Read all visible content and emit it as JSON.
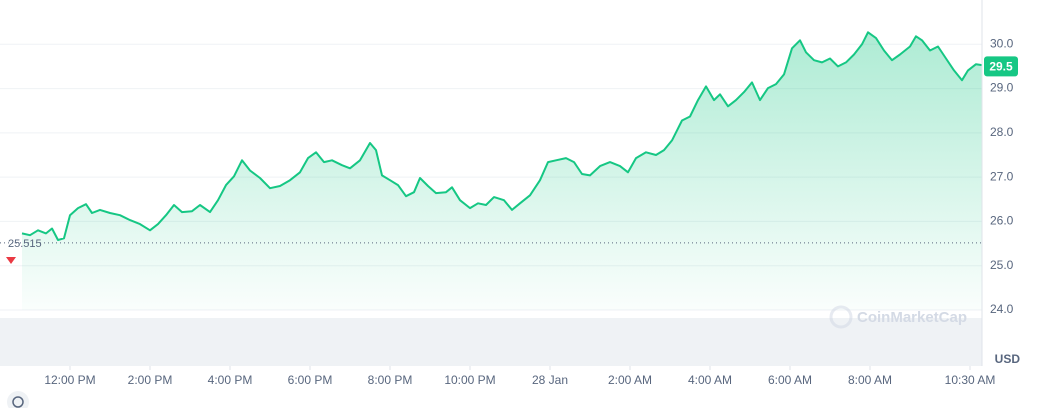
{
  "chart_data": {
    "type": "line",
    "color": "#16c784",
    "x": [
      10.8,
      11.0,
      11.2,
      11.4,
      11.55,
      11.7,
      11.85,
      12.0,
      12.2,
      12.4,
      12.55,
      12.75,
      13.0,
      13.25,
      13.5,
      13.75,
      14.0,
      14.2,
      14.4,
      14.6,
      14.8,
      15.05,
      15.25,
      15.5,
      15.7,
      15.9,
      16.1,
      16.3,
      16.5,
      16.75,
      17.0,
      17.25,
      17.5,
      17.75,
      17.95,
      18.15,
      18.35,
      18.55,
      18.8,
      19.0,
      19.25,
      19.5,
      19.65,
      19.8,
      20.0,
      20.2,
      20.4,
      20.6,
      20.75,
      20.95,
      21.15,
      21.4,
      21.55,
      21.75,
      22.0,
      22.2,
      22.4,
      22.6,
      22.85,
      23.05,
      23.25,
      23.5,
      23.75,
      23.95,
      24.15,
      24.4,
      24.6,
      24.8,
      25.0,
      25.25,
      25.5,
      25.75,
      25.95,
      26.15,
      26.4,
      26.65,
      26.85,
      27.05,
      27.3,
      27.5,
      27.7,
      27.9,
      28.1,
      28.25,
      28.45,
      28.65,
      28.85,
      29.05,
      29.25,
      29.45,
      29.65,
      29.85,
      30.05,
      30.25,
      30.4,
      30.6,
      30.8,
      31.0,
      31.2,
      31.4,
      31.6,
      31.8,
      31.95,
      32.15,
      32.35,
      32.55,
      32.75,
      33.0,
      33.15,
      33.3,
      33.5,
      33.7,
      33.9,
      34.1,
      34.3,
      34.45,
      34.65,
      34.8
    ],
    "values": [
      25.73,
      25.69,
      25.8,
      25.73,
      25.84,
      25.58,
      25.62,
      26.14,
      26.3,
      26.39,
      26.19,
      26.26,
      26.19,
      26.14,
      26.03,
      25.94,
      25.8,
      25.94,
      26.14,
      26.37,
      26.21,
      26.23,
      26.37,
      26.21,
      26.48,
      26.82,
      27.02,
      27.38,
      27.15,
      26.98,
      26.75,
      26.8,
      26.93,
      27.11,
      27.43,
      27.56,
      27.34,
      27.38,
      27.27,
      27.2,
      27.38,
      27.77,
      27.61,
      27.04,
      26.93,
      26.82,
      26.57,
      26.66,
      26.98,
      26.8,
      26.64,
      26.66,
      26.77,
      26.48,
      26.3,
      26.41,
      26.37,
      26.55,
      26.48,
      26.26,
      26.41,
      26.59,
      26.93,
      27.34,
      27.38,
      27.43,
      27.34,
      27.07,
      27.04,
      27.25,
      27.34,
      27.25,
      27.11,
      27.43,
      27.56,
      27.5,
      27.61,
      27.83,
      28.28,
      28.37,
      28.74,
      29.05,
      28.74,
      28.87,
      28.6,
      28.74,
      28.92,
      29.14,
      28.74,
      29.01,
      29.1,
      29.32,
      29.91,
      30.09,
      29.82,
      29.64,
      29.59,
      29.68,
      29.5,
      29.59,
      29.77,
      30.0,
      30.27,
      30.14,
      29.86,
      29.64,
      29.77,
      29.95,
      30.18,
      30.09,
      29.86,
      29.95,
      29.68,
      29.41,
      29.19,
      29.41,
      29.55,
      29.53
    ],
    "xlim": [
      10.25,
      34.8
    ],
    "xticks": [
      {
        "value": 12,
        "label": "12:00 PM"
      },
      {
        "value": 14,
        "label": "2:00 PM"
      },
      {
        "value": 16,
        "label": "4:00 PM"
      },
      {
        "value": 18,
        "label": "6:00 PM"
      },
      {
        "value": 20,
        "label": "8:00 PM"
      },
      {
        "value": 22,
        "label": "10:00 PM"
      },
      {
        "value": 24,
        "label": "28 Jan"
      },
      {
        "value": 26,
        "label": "2:00 AM"
      },
      {
        "value": 28,
        "label": "4:00 AM"
      },
      {
        "value": 30,
        "label": "6:00 AM"
      },
      {
        "value": 32,
        "label": "8:00 AM"
      },
      {
        "value": 34.5,
        "label": "10:30 AM"
      }
    ],
    "ylim": [
      24,
      31
    ],
    "yticks": [
      {
        "value": 24,
        "label": "24.0"
      },
      {
        "value": 25,
        "label": "25.0"
      },
      {
        "value": 26,
        "label": "26.0"
      },
      {
        "value": 27,
        "label": "27.0"
      },
      {
        "value": 28,
        "label": "28.0"
      },
      {
        "value": 29,
        "label": "29.0"
      },
      {
        "value": 30,
        "label": "30.0"
      }
    ],
    "grid": true,
    "reference_value": 25.515,
    "current_price": 29.5,
    "y_unit": "USD",
    "watermark": "CoinMarketCap"
  }
}
